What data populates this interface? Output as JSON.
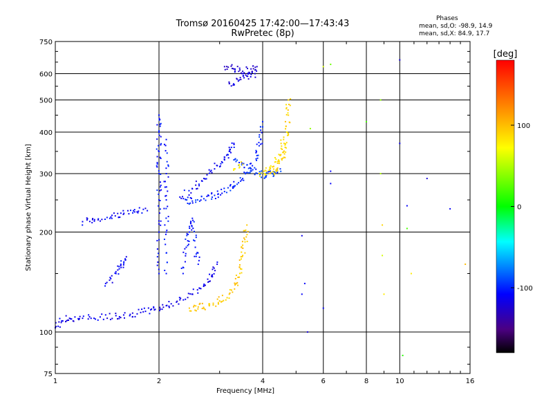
{
  "chart_data": {
    "type": "scatter",
    "title": "Tromsø 20160425 17:42:00—17:43:43",
    "subtitle": "RwPretec (8p)",
    "stats": {
      "heading": "Phases",
      "o_line": "mean, sd,O: -98.9, 14.9",
      "x_line": "mean, sd,X:  84.9, 17.7"
    },
    "xlabel": "Frequency [MHz]",
    "ylabel": "Stationary phase Virtual Height [km]",
    "x_scale": "log",
    "y_scale": "log",
    "xlim": [
      1,
      16
    ],
    "ylim": [
      75,
      750
    ],
    "x_ticks": [
      1,
      2,
      4,
      6,
      8,
      10,
      16
    ],
    "x_tick_labels": [
      "1",
      "2",
      "4",
      "6",
      "8",
      "10",
      "16"
    ],
    "y_ticks": [
      75,
      100,
      200,
      300,
      400,
      500,
      600,
      750
    ],
    "y_tick_labels": [
      "75",
      "100",
      "200",
      "300",
      "400",
      "500",
      "600",
      "750"
    ],
    "grid": true,
    "colorbar": {
      "label": "[deg]",
      "range": [
        -180,
        180
      ],
      "ticks": [
        100,
        0,
        -100
      ],
      "tick_labels": [
        "100",
        "0",
        "-100"
      ],
      "colors": [
        "#ff0000",
        "#ff8000",
        "#ffff00",
        "#00ff00",
        "#00ffff",
        "#0000ff",
        "#4b0082",
        "#000000"
      ]
    },
    "series": [
      {
        "traces": [
          {
            "phase": -115,
            "points": [
              [
                1.0,
                103
              ],
              [
                1.05,
                108
              ],
              [
                1.1,
                110
              ],
              [
                1.2,
                110
              ],
              [
                1.35,
                111
              ],
              [
                1.5,
                112
              ],
              [
                1.65,
                113
              ],
              [
                1.8,
                115
              ],
              [
                1.95,
                117
              ],
              [
                2.1,
                120
              ],
              [
                2.3,
                125
              ],
              [
                2.5,
                130
              ],
              [
                2.7,
                138
              ],
              [
                2.85,
                148
              ],
              [
                2.95,
                160
              ]
            ]
          },
          {
            "phase": -110,
            "points": [
              [
                1.2,
                215
              ],
              [
                1.3,
                218
              ],
              [
                1.45,
                222
              ],
              [
                1.55,
                228
              ],
              [
                1.7,
                230
              ],
              [
                1.85,
                232
              ]
            ]
          },
          {
            "phase": -110,
            "points": [
              [
                1.4,
                140
              ],
              [
                1.5,
                150
              ],
              [
                1.55,
                160
              ],
              [
                1.6,
                165
              ]
            ]
          },
          {
            "phase": -105,
            "points": [
              [
                2.0,
                150
              ],
              [
                2.0,
                200
              ],
              [
                2.0,
                250
              ],
              [
                2.0,
                300
              ],
              [
                2.0,
                350
              ],
              [
                2.0,
                400
              ],
              [
                2.0,
                450
              ]
            ]
          },
          {
            "phase": -105,
            "points": [
              [
                2.1,
                150
              ],
              [
                2.1,
                200
              ],
              [
                2.1,
                250
              ],
              [
                2.1,
                300
              ],
              [
                2.1,
                380
              ]
            ]
          },
          {
            "phase": -105,
            "points": [
              [
                2.35,
                150
              ],
              [
                2.4,
                180
              ],
              [
                2.45,
                200
              ],
              [
                2.5,
                220
              ],
              [
                2.55,
                180
              ],
              [
                2.6,
                160
              ]
            ]
          },
          {
            "phase": -100,
            "points": [
              [
                2.4,
                250
              ],
              [
                2.5,
                248
              ],
              [
                2.7,
                252
              ],
              [
                2.9,
                258
              ],
              [
                3.1,
                265
              ],
              [
                3.3,
                275
              ],
              [
                3.5,
                290
              ],
              [
                3.7,
                310
              ],
              [
                3.85,
                340
              ],
              [
                3.95,
                380
              ],
              [
                4.0,
                430
              ]
            ]
          },
          {
            "phase": -110,
            "points": [
              [
                2.3,
                255
              ],
              [
                2.5,
                270
              ],
              [
                2.7,
                290
              ],
              [
                2.9,
                310
              ],
              [
                3.1,
                330
              ],
              [
                3.2,
                350
              ],
              [
                3.3,
                370
              ]
            ]
          },
          {
            "phase": -125,
            "points": [
              [
                3.1,
                630
              ],
              [
                3.3,
                620
              ],
              [
                3.5,
                610
              ],
              [
                3.7,
                620
              ],
              [
                3.85,
                630
              ]
            ]
          },
          {
            "phase": -120,
            "points": [
              [
                3.2,
                560
              ],
              [
                3.4,
                570
              ],
              [
                3.6,
                590
              ],
              [
                3.8,
                600
              ]
            ]
          },
          {
            "phase": -95,
            "points": [
              [
                3.3,
                330
              ],
              [
                3.5,
                320
              ],
              [
                3.7,
                310
              ],
              [
                3.9,
                300
              ],
              [
                4.1,
                296
              ],
              [
                4.3,
                300
              ],
              [
                4.5,
                310
              ]
            ]
          }
        ]
      },
      {
        "traces": [
          {
            "phase": 95,
            "points": [
              [
                2.45,
                118
              ],
              [
                2.6,
                119
              ],
              [
                2.8,
                120
              ],
              [
                3.0,
                124
              ],
              [
                3.2,
                130
              ],
              [
                3.35,
                140
              ],
              [
                3.45,
                155
              ],
              [
                3.5,
                170
              ],
              [
                3.55,
                190
              ],
              [
                3.6,
                210
              ]
            ]
          },
          {
            "phase": 90,
            "points": [
              [
                4.2,
                300
              ],
              [
                4.4,
                310
              ],
              [
                4.55,
                330
              ],
              [
                4.65,
                360
              ],
              [
                4.7,
                400
              ],
              [
                4.75,
                450
              ],
              [
                4.75,
                500
              ]
            ]
          },
          {
            "phase": 85,
            "points": [
              [
                3.9,
                300
              ],
              [
                4.1,
                305
              ],
              [
                4.3,
                315
              ],
              [
                4.5,
                340
              ],
              [
                4.6,
                380
              ]
            ]
          },
          {
            "phase": 80,
            "points": [
              [
                3.3,
                310
              ],
              [
                3.5,
                320
              ]
            ]
          }
        ]
      }
    ],
    "sparse_points": [
      {
        "x": 5.2,
        "y": 195,
        "phase": -115
      },
      {
        "x": 5.3,
        "y": 140,
        "phase": -110
      },
      {
        "x": 5.2,
        "y": 130,
        "phase": -110
      },
      {
        "x": 5.4,
        "y": 100,
        "phase": -120
      },
      {
        "x": 6.0,
        "y": 118,
        "phase": -110
      },
      {
        "x": 6.3,
        "y": 305,
        "phase": -110
      },
      {
        "x": 6.3,
        "y": 280,
        "phase": -110
      },
      {
        "x": 5.5,
        "y": 410,
        "phase": 40
      },
      {
        "x": 6.0,
        "y": 630,
        "phase": 60
      },
      {
        "x": 6.3,
        "y": 640,
        "phase": 30
      },
      {
        "x": 8.0,
        "y": 430,
        "phase": 20
      },
      {
        "x": 8.8,
        "y": 500,
        "phase": 40
      },
      {
        "x": 8.8,
        "y": 300,
        "phase": 50
      },
      {
        "x": 8.9,
        "y": 210,
        "phase": 90
      },
      {
        "x": 8.9,
        "y": 170,
        "phase": 60
      },
      {
        "x": 9.0,
        "y": 130,
        "phase": 80
      },
      {
        "x": 10.0,
        "y": 370,
        "phase": -115
      },
      {
        "x": 10.0,
        "y": 660,
        "phase": -120
      },
      {
        "x": 10.5,
        "y": 240,
        "phase": -110
      },
      {
        "x": 10.5,
        "y": 205,
        "phase": 20
      },
      {
        "x": 10.8,
        "y": 150,
        "phase": 80
      },
      {
        "x": 10.2,
        "y": 85,
        "phase": 10
      },
      {
        "x": 12.0,
        "y": 290,
        "phase": -120
      },
      {
        "x": 14.0,
        "y": 235,
        "phase": -110
      },
      {
        "x": 15.5,
        "y": 160,
        "phase": 100
      }
    ]
  }
}
